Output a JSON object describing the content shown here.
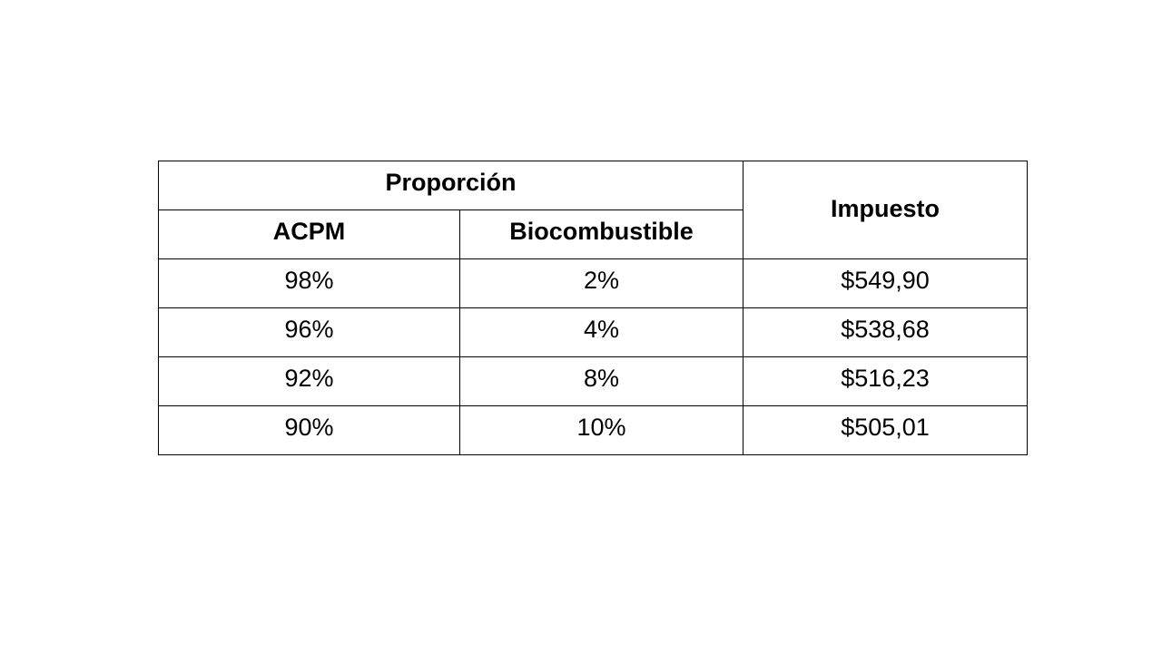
{
  "table": {
    "header": {
      "group_label": "Proporción",
      "tax_label": "Impuesto",
      "col_acpm": "ACPM",
      "col_bio": "Biocombustible"
    },
    "rows": [
      {
        "acpm": "98%",
        "bio": "2%",
        "tax": "$549,90"
      },
      {
        "acpm": "96%",
        "bio": "4%",
        "tax": "$538,68"
      },
      {
        "acpm": "92%",
        "bio": "8%",
        "tax": "$516,23"
      },
      {
        "acpm": "90%",
        "bio": "10%",
        "tax": "$505,01"
      }
    ]
  }
}
